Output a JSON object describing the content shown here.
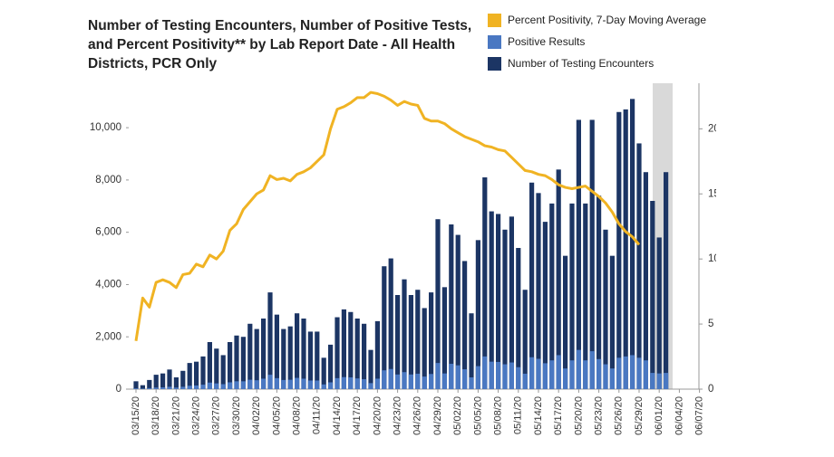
{
  "chart_data": {
    "type": "bar-line",
    "title": "Number of Testing Encounters, Number of Positive Tests, and Percent Positivity** by Lab Report Date - All Health Districts, PCR Only",
    "categories": [
      "03/15/20",
      null,
      null,
      "03/18/20",
      null,
      null,
      "03/21/20",
      null,
      null,
      "03/24/20",
      null,
      null,
      "03/27/20",
      null,
      null,
      "03/30/20",
      null,
      null,
      "04/02/20",
      null,
      null,
      "04/05/20",
      null,
      null,
      "04/08/20",
      null,
      null,
      "04/11/20",
      null,
      null,
      "04/14/20",
      null,
      null,
      "04/17/20",
      null,
      null,
      "04/20/20",
      null,
      null,
      "04/23/20",
      null,
      null,
      "04/26/20",
      null,
      null,
      "04/29/20",
      null,
      null,
      "05/02/20",
      null,
      null,
      "05/05/20",
      null,
      null,
      "05/08/20",
      null,
      null,
      "05/11/20",
      null,
      null,
      "05/14/20",
      null,
      null,
      "05/17/20",
      null,
      null,
      "05/20/20",
      null,
      null,
      "05/23/20",
      null,
      null,
      "05/26/20",
      null,
      null,
      "05/29/20",
      null,
      null,
      "06/01/20",
      null,
      null,
      "06/04/20",
      null,
      null,
      "06/07/20"
    ],
    "series": [
      {
        "name": "Percent Positivity, 7-Day Moving Average",
        "color": "#f0b323",
        "axis": "y2",
        "kind": "line",
        "values": [
          3.7,
          7,
          6.3,
          8.2,
          8.4,
          8.2,
          7.8,
          8.8,
          8.9,
          9.6,
          9.4,
          10.3,
          10,
          10.6,
          12.2,
          12.7,
          13.8,
          14.4,
          15,
          15.3,
          16.4,
          16.1,
          16.2,
          16,
          16.5,
          16.7,
          17,
          17.5,
          18,
          20,
          21.5,
          21.7,
          22,
          22.4,
          22.4,
          22.8,
          22.7,
          22.5,
          22.2,
          21.8,
          22.1,
          21.9,
          21.8,
          20.8,
          20.6,
          20.6,
          20.4,
          20,
          19.7,
          19.4,
          19.2,
          19,
          18.7,
          18.6,
          18.4,
          18.3,
          17.8,
          17.3,
          16.8,
          16.7,
          16.5,
          16.4,
          16.1,
          15.7,
          15.5,
          15.4,
          15.5,
          15.6,
          15.2,
          14.8,
          14.3,
          13.6,
          12.7,
          12.1,
          11.7,
          11.1,
          null,
          null,
          null,
          null,
          null,
          null,
          null,
          null,
          null
        ]
      },
      {
        "name": "Positive Results",
        "color": "#4a78c2",
        "kind": "bar",
        "values": [
          30,
          20,
          40,
          60,
          70,
          90,
          60,
          90,
          130,
          140,
          170,
          250,
          220,
          190,
          260,
          300,
          300,
          360,
          340,
          400,
          550,
          420,
          350,
          360,
          430,
          400,
          330,
          330,
          180,
          260,
          420,
          460,
          450,
          410,
          380,
          230,
          400,
          720,
          770,
          560,
          650,
          560,
          590,
          480,
          580,
          1000,
          600,
          970,
          910,
          760,
          450,
          880,
          1250,
          1050,
          1040,
          950,
          1020,
          840,
          590,
          1220,
          1160,
          990,
          1100,
          1300,
          790,
          1100,
          1500,
          1100,
          1450,
          1150,
          950,
          790,
          1200,
          1250,
          1300,
          1200,
          1100,
          620,
          600,
          620,
          null,
          null,
          null,
          null,
          null
        ]
      },
      {
        "name": "Number of Testing Encounters",
        "color": "#1c3564",
        "kind": "bar",
        "values": [
          300,
          150,
          350,
          550,
          600,
          750,
          450,
          700,
          1000,
          1050,
          1250,
          1800,
          1550,
          1300,
          1800,
          2050,
          2000,
          2500,
          2300,
          2700,
          3700,
          2850,
          2300,
          2400,
          2900,
          2700,
          2200,
          2200,
          1200,
          1700,
          2750,
          3050,
          2950,
          2700,
          2500,
          1500,
          2600,
          4700,
          5000,
          3600,
          4200,
          3600,
          3800,
          3100,
          3700,
          6500,
          3900,
          6300,
          5900,
          4900,
          2900,
          5700,
          8100,
          6800,
          6700,
          6100,
          6600,
          5400,
          3800,
          7900,
          7500,
          6400,
          7100,
          8400,
          5100,
          7100,
          10300,
          7100,
          10300,
          7400,
          6100,
          5100,
          10600,
          10700,
          11100,
          9400,
          8300,
          7200,
          5800,
          8300,
          null,
          null,
          null,
          null,
          null
        ]
      }
    ],
    "ylim": [
      0,
      11700
    ],
    "yticks": [
      0,
      {
        "value": 2000,
        "label": "2,000"
      },
      {
        "value": 4000,
        "label": "4,000"
      },
      {
        "value": 6000,
        "label": "6,000"
      },
      {
        "value": 8000,
        "label": "8,000"
      },
      {
        "value": 10000,
        "label": "10,000"
      }
    ],
    "y2lim": [
      0,
      23.5
    ],
    "y2ticks": [
      0,
      5,
      10,
      15,
      20
    ]
  }
}
